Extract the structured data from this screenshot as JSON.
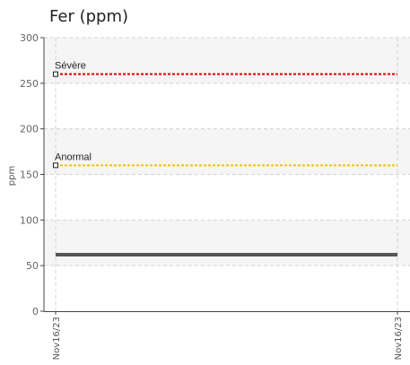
{
  "chart_data": {
    "type": "line",
    "title": "Fer (ppm)",
    "ylabel": "ppm",
    "xlabel": "",
    "ylim": [
      0,
      300
    ],
    "yticks": [
      0,
      50,
      100,
      150,
      200,
      250,
      300
    ],
    "x": [
      "Nov16/23",
      "Nov16/23"
    ],
    "grid": true,
    "thresholds": [
      {
        "label": "Sévère",
        "value": 260,
        "color": "#e00000"
      },
      {
        "label": "Anormal",
        "value": 160,
        "color": "#f2c200"
      }
    ],
    "series": [
      {
        "values": [
          62,
          62
        ],
        "color": "#555555"
      }
    ]
  }
}
